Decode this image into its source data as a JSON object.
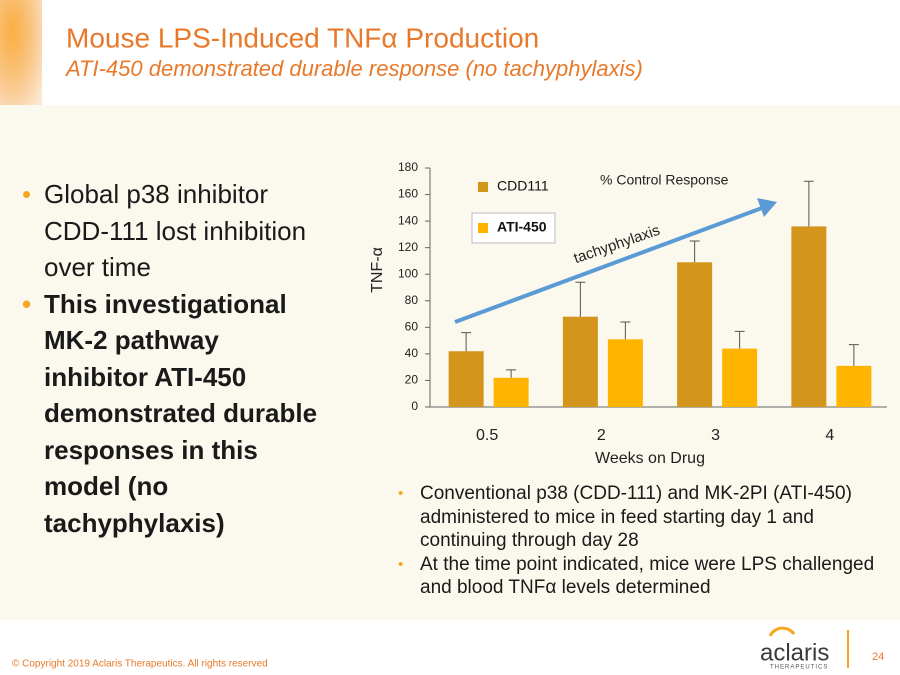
{
  "header": {
    "title": "Mouse LPS-Induced TNFα Production",
    "subtitle": "ATI-450 demonstrated durable response (no tachyphylaxis)"
  },
  "left_bullets": [
    "Global p38 inhibitor CDD-111 lost inhibition over time",
    "This investigational MK-2 pathway inhibitor ATI-450 demonstrated durable responses in this model (no tachyphylaxis)"
  ],
  "right_bullets": [
    "Conventional  p38 (CDD-111) and MK-2PI (ATI-450) administered to mice in feed starting day 1 and continuing through day 28",
    "At the time point indicated, mice were LPS challenged and blood TNFα levels determined"
  ],
  "footer": {
    "copyright": "© Copyright 2019 Aclaris Therapeutics. All rights reserved",
    "page": "24",
    "logo": "aclaris",
    "logo_tagline": "THERAPEUTICS"
  },
  "chart_data": {
    "type": "bar",
    "categories": [
      "0.5",
      "2",
      "3",
      "4"
    ],
    "series": [
      {
        "name": "CDD111",
        "color": "#d4951c",
        "values": [
          42,
          68,
          109,
          136
        ],
        "errors": [
          14,
          26,
          16,
          34
        ]
      },
      {
        "name": "ATI-450",
        "color": "#ffb400",
        "values": [
          22,
          51,
          44,
          31
        ],
        "errors": [
          6,
          13,
          13,
          16
        ]
      }
    ],
    "ylim": [
      0,
      180
    ],
    "yticks": [
      0,
      20,
      40,
      60,
      80,
      100,
      120,
      140,
      160,
      180
    ],
    "y_label": "TNF-α",
    "x_label": "Weeks on Drug",
    "annotation": "% Control Response",
    "arrow_label": "tachyphylaxis"
  }
}
